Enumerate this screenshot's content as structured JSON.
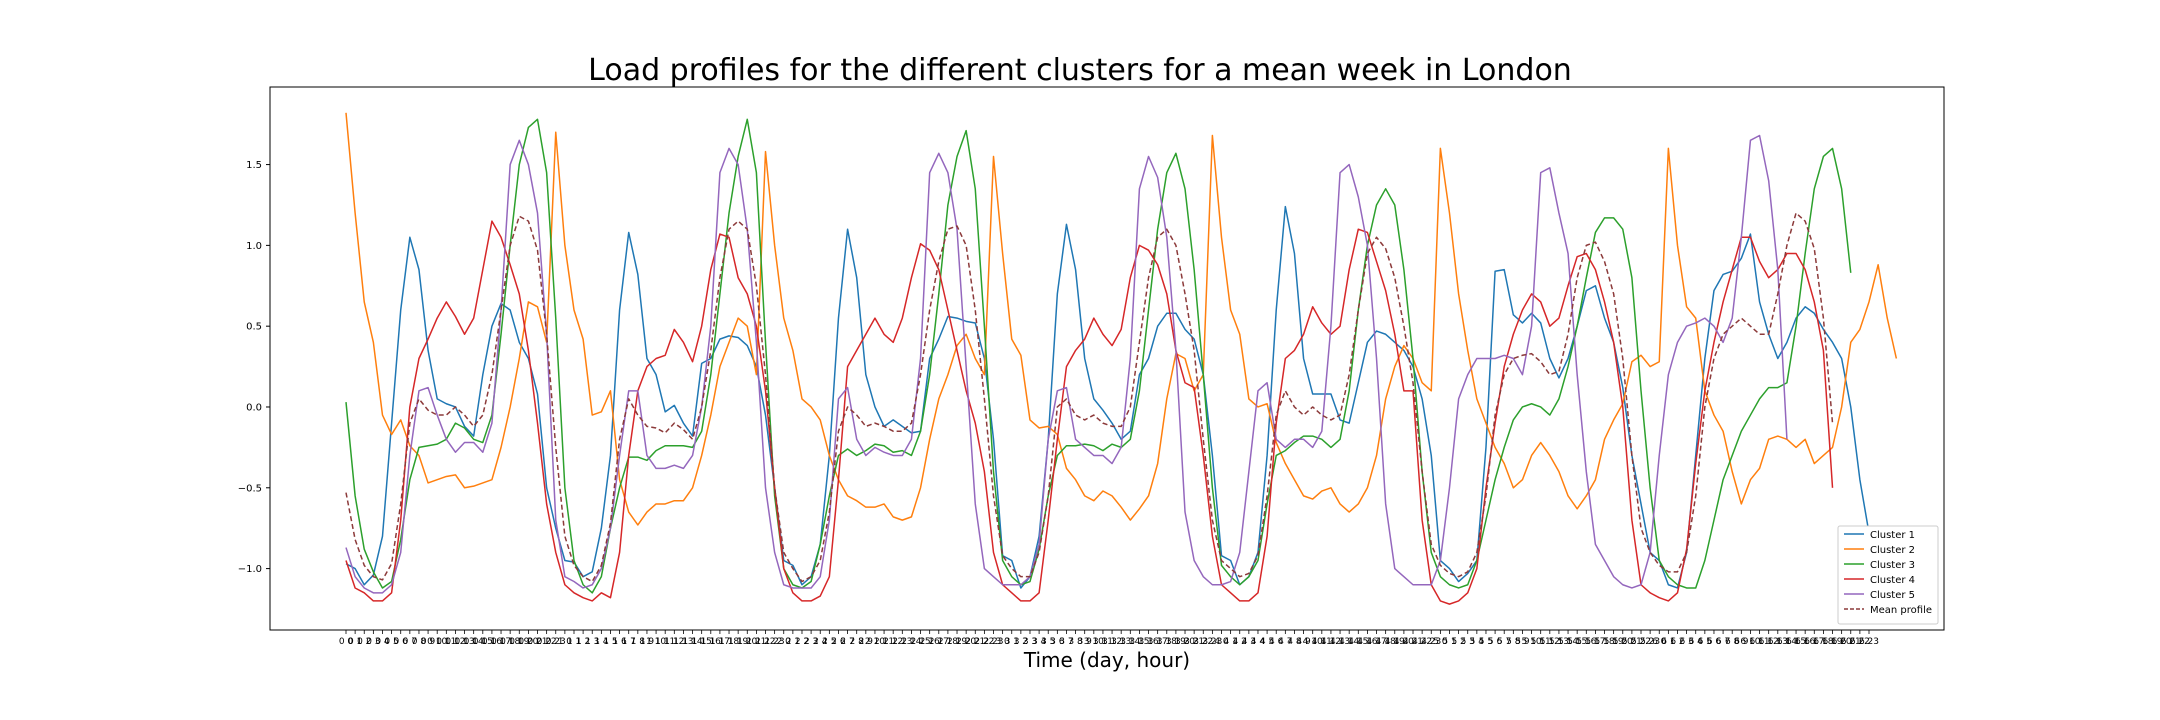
{
  "chart_data": {
    "type": "line",
    "title": "Load profiles for the different clusters for a mean week in London",
    "xlabel": "Time (day, hour)",
    "ylabel": "",
    "ylim": [
      -1.38,
      1.98
    ],
    "yticks": [
      -1.0,
      -0.5,
      0.0,
      0.5,
      1.0,
      1.5
    ],
    "ytick_labels": [
      "−1.0",
      "−0.5",
      "0.0",
      "0.5",
      "1.0",
      "1.5"
    ],
    "x_tick_labels": [
      "0 0",
      "0 1",
      "0 2",
      "0 3",
      "0 4",
      "0 5",
      "0 6",
      "0 7",
      "0 8",
      "0 9",
      "0 10",
      "0 11",
      "0 12",
      "0 13",
      "0 14",
      "0 15",
      "0 16",
      "0 17",
      "0 18",
      "0 19",
      "0 20",
      "0 21",
      "0 22",
      "0 23",
      "1 0",
      "1 1",
      "1 2",
      "1 3",
      "1 4",
      "1 5",
      "1 6",
      "1 7",
      "1 8",
      "1 9",
      "1 10",
      "1 11",
      "1 12",
      "1 13",
      "1 14",
      "1 15",
      "1 16",
      "1 17",
      "1 18",
      "1 19",
      "1 20",
      "1 21",
      "1 22",
      "1 23",
      "2 0",
      "2 1",
      "2 2",
      "2 3",
      "2 4",
      "2 5",
      "2 6",
      "2 7",
      "2 8",
      "2 9",
      "2 10",
      "2 11",
      "2 12",
      "2 13",
      "2 14",
      "2 15",
      "2 16",
      "2 17",
      "2 18",
      "2 19",
      "2 20",
      "2 21",
      "2 22",
      "2 23",
      "3 0",
      "3 1",
      "3 2",
      "3 3",
      "3 4",
      "3 5",
      "3 6",
      "3 7",
      "3 8",
      "3 9",
      "3 10",
      "3 11",
      "3 12",
      "3 13",
      "3 14",
      "3 15",
      "3 16",
      "3 17",
      "3 18",
      "3 19",
      "3 20",
      "3 21",
      "3 22",
      "3 23",
      "4 0",
      "4 1",
      "4 2",
      "4 3",
      "4 4",
      "4 5",
      "4 6",
      "4 7",
      "4 8",
      "4 9",
      "4 10",
      "4 11",
      "4 12",
      "4 13",
      "4 14",
      "4 15",
      "4 16",
      "4 17",
      "4 18",
      "4 19",
      "4 20",
      "4 21",
      "4 22",
      "4 23",
      "5 0",
      "5 1",
      "5 2",
      "5 3",
      "5 4",
      "5 5",
      "5 6",
      "5 7",
      "5 8",
      "5 9",
      "5 10",
      "5 11",
      "5 12",
      "5 13",
      "5 14",
      "5 15",
      "5 16",
      "5 17",
      "5 18",
      "5 19",
      "5 20",
      "5 21",
      "5 22",
      "5 23",
      "6 0",
      "6 1",
      "6 2",
      "6 3",
      "6 4",
      "6 5",
      "6 6",
      "6 7",
      "6 8",
      "6 9",
      "6 10",
      "6 11",
      "6 12",
      "6 13",
      "6 14",
      "6 15",
      "6 16",
      "6 17",
      "6 18",
      "6 19",
      "6 20",
      "6 21",
      "6 22",
      "6 23"
    ],
    "grid": false,
    "legend_position": "lower-right",
    "series": [
      {
        "name": "Cluster 1",
        "color": "#1f77b4",
        "dash": "solid",
        "values": [
          -0.97,
          -1.0,
          -1.1,
          -1.04,
          -0.8,
          -0.1,
          0.6,
          1.05,
          0.85,
          0.35,
          0.05,
          0.02,
          0.0,
          -0.12,
          -0.18,
          0.2,
          0.5,
          0.64,
          0.6,
          0.4,
          0.3,
          0.08,
          -0.5,
          -0.75,
          -0.95,
          -0.96,
          -1.05,
          -1.02,
          -0.75,
          -0.3,
          0.6,
          1.08,
          0.82,
          0.3,
          0.2,
          -0.03,
          0.01,
          -0.1,
          -0.18,
          0.27,
          0.3,
          0.42,
          0.44,
          0.43,
          0.38,
          0.25,
          -0.05,
          -0.5,
          -0.95,
          -0.98,
          -1.1,
          -1.05,
          -0.85,
          -0.3,
          0.55,
          1.1,
          0.8,
          0.2,
          0.0,
          -0.12,
          -0.08,
          -0.12,
          -0.16,
          -0.15,
          0.3,
          0.42,
          0.56,
          0.55,
          0.53,
          0.52,
          0.3,
          -0.2,
          -0.92,
          -0.95,
          -1.12,
          -1.05,
          -0.8,
          -0.2,
          0.7,
          1.13,
          0.85,
          0.3,
          0.05,
          -0.02,
          -0.1,
          -0.2,
          -0.15,
          0.2,
          0.3,
          0.5,
          0.58,
          0.58,
          0.48,
          0.42,
          0.2,
          -0.3,
          -0.92,
          -0.95,
          -1.1,
          -1.05,
          -0.9,
          -0.3,
          0.6,
          1.24,
          0.95,
          0.3,
          0.08,
          0.08,
          0.08,
          -0.08,
          -0.1,
          0.15,
          0.4,
          0.47,
          0.45,
          0.4,
          0.35,
          0.25,
          0.05,
          -0.3,
          -0.95,
          -1.0,
          -1.08,
          -1.03,
          -0.95,
          -0.25,
          0.84,
          0.85,
          0.57,
          0.52,
          0.58,
          0.52,
          0.3,
          0.18,
          0.3,
          0.5,
          0.72,
          0.75,
          0.55,
          0.4,
          0.12,
          -0.3,
          -0.6,
          -0.9,
          -0.95,
          -1.1,
          -1.12,
          -0.9,
          -0.3,
          0.3,
          0.72,
          0.82,
          0.84,
          0.92,
          1.07,
          0.65,
          0.45,
          0.3,
          0.4,
          0.55,
          0.62,
          0.58,
          0.48,
          0.4,
          0.3,
          0.0,
          -0.45,
          -0.78
        ]
      },
      {
        "name": "Cluster 2",
        "color": "#ff7f0e",
        "dash": "solid",
        "values": [
          1.82,
          1.2,
          0.65,
          0.4,
          -0.05,
          -0.17,
          -0.08,
          -0.24,
          -0.3,
          -0.47,
          -0.45,
          -0.43,
          -0.42,
          -0.5,
          -0.49,
          -0.47,
          -0.45,
          -0.25,
          0.0,
          0.3,
          0.65,
          0.62,
          0.4,
          1.7,
          1.0,
          0.6,
          0.42,
          -0.05,
          -0.03,
          0.1,
          -0.45,
          -0.65,
          -0.73,
          -0.65,
          -0.6,
          -0.6,
          -0.58,
          -0.58,
          -0.5,
          -0.3,
          -0.05,
          0.25,
          0.4,
          0.55,
          0.5,
          0.2,
          1.58,
          1.0,
          0.55,
          0.35,
          0.05,
          0.0,
          -0.08,
          -0.3,
          -0.45,
          -0.55,
          -0.58,
          -0.62,
          -0.62,
          -0.6,
          -0.68,
          -0.7,
          -0.68,
          -0.5,
          -0.2,
          0.05,
          0.2,
          0.38,
          0.45,
          0.3,
          0.2,
          1.55,
          0.95,
          0.42,
          0.32,
          -0.08,
          -0.13,
          -0.12,
          -0.17,
          -0.38,
          -0.45,
          -0.55,
          -0.58,
          -0.52,
          -0.55,
          -0.62,
          -0.7,
          -0.63,
          -0.55,
          -0.35,
          0.05,
          0.33,
          0.3,
          0.1,
          0.2,
          1.68,
          1.05,
          0.6,
          0.45,
          0.05,
          0.0,
          0.02,
          -0.22,
          -0.35,
          -0.45,
          -0.55,
          -0.57,
          -0.52,
          -0.5,
          -0.6,
          -0.65,
          -0.6,
          -0.5,
          -0.3,
          0.05,
          0.25,
          0.38,
          0.3,
          0.15,
          0.1,
          1.6,
          1.2,
          0.7,
          0.35,
          0.05,
          -0.1,
          -0.25,
          -0.35,
          -0.5,
          -0.45,
          -0.3,
          -0.22,
          -0.3,
          -0.4,
          -0.55,
          -0.63,
          -0.55,
          -0.45,
          -0.2,
          -0.08,
          0.02,
          0.28,
          0.32,
          0.25,
          0.28,
          1.6,
          1.0,
          0.62,
          0.55,
          0.1,
          -0.05,
          -0.15,
          -0.4,
          -0.6,
          -0.45,
          -0.38,
          -0.2,
          -0.18,
          -0.2,
          -0.25,
          -0.2,
          -0.35,
          -0.3,
          -0.25,
          0.0,
          0.4,
          0.48,
          0.65,
          0.88,
          0.55,
          0.3
        ]
      },
      {
        "name": "Cluster 3",
        "color": "#2ca02c",
        "dash": "solid",
        "values": [
          0.03,
          -0.55,
          -0.88,
          -1.02,
          -1.12,
          -1.08,
          -0.82,
          -0.45,
          -0.25,
          -0.24,
          -0.23,
          -0.2,
          -0.1,
          -0.13,
          -0.2,
          -0.22,
          -0.05,
          0.45,
          1.0,
          1.5,
          1.73,
          1.78,
          1.45,
          0.55,
          -0.5,
          -0.95,
          -1.1,
          -1.15,
          -1.05,
          -0.75,
          -0.5,
          -0.31,
          -0.31,
          -0.33,
          -0.27,
          -0.24,
          -0.24,
          -0.24,
          -0.25,
          -0.15,
          0.2,
          0.7,
          1.2,
          1.55,
          1.78,
          1.45,
          0.4,
          -0.55,
          -1.0,
          -1.1,
          -1.12,
          -1.08,
          -0.85,
          -0.55,
          -0.3,
          -0.26,
          -0.3,
          -0.27,
          -0.23,
          -0.24,
          -0.28,
          -0.27,
          -0.3,
          -0.15,
          0.2,
          0.7,
          1.25,
          1.55,
          1.71,
          1.35,
          0.5,
          -0.4,
          -0.95,
          -1.05,
          -1.1,
          -1.08,
          -0.88,
          -0.55,
          -0.3,
          -0.24,
          -0.24,
          -0.23,
          -0.24,
          -0.27,
          -0.23,
          -0.25,
          -0.2,
          0.1,
          0.6,
          1.1,
          1.45,
          1.57,
          1.35,
          0.85,
          0.2,
          -0.5,
          -0.98,
          -1.05,
          -1.1,
          -1.05,
          -0.95,
          -0.6,
          -0.3,
          -0.27,
          -0.22,
          -0.18,
          -0.18,
          -0.2,
          -0.25,
          -0.2,
          0.1,
          0.6,
          1.0,
          1.25,
          1.35,
          1.25,
          0.85,
          0.3,
          -0.4,
          -0.9,
          -1.05,
          -1.1,
          -1.12,
          -1.1,
          -0.95,
          -0.7,
          -0.45,
          -0.25,
          -0.08,
          0.0,
          0.02,
          0.0,
          -0.05,
          0.05,
          0.25,
          0.5,
          0.8,
          1.08,
          1.17,
          1.17,
          1.1,
          0.8,
          0.1,
          -0.5,
          -0.95,
          -1.05,
          -1.1,
          -1.12,
          -1.12,
          -0.95,
          -0.7,
          -0.45,
          -0.3,
          -0.15,
          -0.05,
          0.05,
          0.12,
          0.12,
          0.15,
          0.5,
          0.95,
          1.35,
          1.55,
          1.6,
          1.35,
          0.83
        ]
      },
      {
        "name": "Cluster 4",
        "color": "#d62728",
        "dash": "solid",
        "values": [
          -0.95,
          -1.12,
          -1.15,
          -1.2,
          -1.2,
          -1.15,
          -0.7,
          0.0,
          0.3,
          0.42,
          0.55,
          0.65,
          0.56,
          0.45,
          0.55,
          0.85,
          1.15,
          1.05,
          0.88,
          0.7,
          0.35,
          -0.1,
          -0.6,
          -0.9,
          -1.1,
          -1.15,
          -1.18,
          -1.2,
          -1.15,
          -1.18,
          -0.9,
          -0.3,
          0.1,
          0.25,
          0.3,
          0.32,
          0.48,
          0.4,
          0.28,
          0.5,
          0.85,
          1.07,
          1.05,
          0.8,
          0.7,
          0.5,
          0.1,
          -0.5,
          -1.0,
          -1.15,
          -1.2,
          -1.2,
          -1.17,
          -1.05,
          -0.45,
          0.25,
          0.35,
          0.45,
          0.55,
          0.45,
          0.4,
          0.55,
          0.8,
          1.01,
          0.97,
          0.85,
          0.6,
          0.35,
          0.1,
          -0.1,
          -0.4,
          -0.9,
          -1.1,
          -1.15,
          -1.2,
          -1.2,
          -1.15,
          -0.7,
          -0.2,
          0.25,
          0.35,
          0.42,
          0.55,
          0.45,
          0.38,
          0.48,
          0.8,
          1.0,
          0.97,
          0.88,
          0.7,
          0.35,
          0.15,
          0.12,
          -0.3,
          -0.8,
          -1.1,
          -1.15,
          -1.2,
          -1.2,
          -1.15,
          -0.8,
          -0.1,
          0.3,
          0.35,
          0.45,
          0.62,
          0.52,
          0.45,
          0.5,
          0.85,
          1.1,
          1.08,
          0.9,
          0.72,
          0.45,
          0.1,
          0.1,
          -0.7,
          -1.1,
          -1.2,
          -1.22,
          -1.2,
          -1.15,
          -1.0,
          -0.5,
          -0.1,
          0.25,
          0.45,
          0.6,
          0.7,
          0.65,
          0.5,
          0.55,
          0.75,
          0.93,
          0.95,
          0.85,
          0.65,
          0.4,
          0.0,
          -0.7,
          -1.1,
          -1.15,
          -1.18,
          -1.2,
          -1.15,
          -0.88,
          -0.35,
          0.1,
          0.4,
          0.65,
          0.85,
          1.05,
          1.05,
          0.9,
          0.8,
          0.85,
          0.95,
          0.95,
          0.85,
          0.65,
          0.35,
          -0.5
        ]
      },
      {
        "name": "Cluster 5",
        "color": "#9467bd",
        "dash": "solid",
        "values": [
          -0.87,
          -1.05,
          -1.12,
          -1.15,
          -1.15,
          -1.1,
          -0.9,
          -0.3,
          0.1,
          0.12,
          -0.05,
          -0.2,
          -0.28,
          -0.22,
          -0.22,
          -0.28,
          -0.1,
          0.6,
          1.5,
          1.65,
          1.5,
          1.2,
          0.45,
          -0.7,
          -1.05,
          -1.08,
          -1.12,
          -1.1,
          -1.0,
          -0.75,
          -0.3,
          0.1,
          0.1,
          -0.3,
          -0.38,
          -0.38,
          -0.36,
          -0.38,
          -0.3,
          0.0,
          0.5,
          1.45,
          1.6,
          1.5,
          1.1,
          0.4,
          -0.5,
          -0.9,
          -1.1,
          -1.12,
          -1.12,
          -1.12,
          -1.05,
          -0.7,
          0.05,
          0.12,
          -0.2,
          -0.3,
          -0.25,
          -0.28,
          -0.3,
          -0.3,
          -0.2,
          0.3,
          1.45,
          1.57,
          1.45,
          1.1,
          0.25,
          -0.6,
          -1.0,
          -1.05,
          -1.1,
          -1.1,
          -1.1,
          -1.05,
          -0.85,
          -0.2,
          0.1,
          0.12,
          -0.2,
          -0.25,
          -0.3,
          -0.3,
          -0.35,
          -0.25,
          0.3,
          1.35,
          1.55,
          1.42,
          1.05,
          0.35,
          -0.65,
          -0.95,
          -1.05,
          -1.1,
          -1.1,
          -1.08,
          -0.9,
          -0.4,
          0.1,
          0.15,
          -0.2,
          -0.25,
          -0.2,
          -0.2,
          -0.25,
          -0.15,
          0.5,
          1.45,
          1.5,
          1.3,
          1.0,
          0.3,
          -0.6,
          -1.0,
          -1.05,
          -1.1,
          -1.1,
          -1.1,
          -0.95,
          -0.5,
          0.05,
          0.2,
          0.3,
          0.3,
          0.3,
          0.32,
          0.3,
          0.2,
          0.5,
          1.45,
          1.48,
          1.2,
          0.95,
          0.2,
          -0.4,
          -0.85,
          -0.95,
          -1.05,
          -1.1,
          -1.12,
          -1.1,
          -0.9,
          -0.3,
          0.2,
          0.4,
          0.5,
          0.52,
          0.55,
          0.5,
          0.4,
          0.55,
          1.05,
          1.65,
          1.68,
          1.4,
          0.85,
          -0.2
        ]
      },
      {
        "name": "Mean profile",
        "color": "#8c3a3a",
        "dash": "dashed",
        "values": [
          -0.53,
          -0.82,
          -0.98,
          -1.05,
          -1.07,
          -0.97,
          -0.6,
          -0.1,
          0.05,
          -0.02,
          -0.05,
          -0.05,
          0.0,
          -0.05,
          -0.12,
          -0.05,
          0.2,
          0.6,
          1.0,
          1.18,
          1.15,
          0.97,
          0.45,
          -0.25,
          -0.8,
          -0.98,
          -1.05,
          -1.08,
          -0.98,
          -0.72,
          -0.2,
          0.05,
          -0.05,
          -0.12,
          -0.13,
          -0.16,
          -0.1,
          -0.14,
          -0.2,
          0.0,
          0.35,
          0.8,
          1.1,
          1.15,
          1.1,
          0.75,
          0.2,
          -0.5,
          -0.9,
          -1.0,
          -1.08,
          -1.05,
          -0.95,
          -0.65,
          -0.15,
          0.0,
          -0.05,
          -0.12,
          -0.1,
          -0.12,
          -0.15,
          -0.15,
          -0.1,
          0.2,
          0.6,
          0.9,
          1.1,
          1.12,
          1.0,
          0.6,
          0.05,
          -0.55,
          -0.92,
          -1.0,
          -1.05,
          -1.05,
          -0.9,
          -0.55,
          0.0,
          0.05,
          -0.05,
          -0.08,
          -0.05,
          -0.1,
          -0.12,
          -0.12,
          0.0,
          0.4,
          0.8,
          1.05,
          1.1,
          1.0,
          0.7,
          0.35,
          -0.2,
          -0.7,
          -0.95,
          -1.0,
          -1.05,
          -1.03,
          -0.92,
          -0.55,
          -0.05,
          0.1,
          0.0,
          -0.05,
          0.0,
          -0.05,
          -0.08,
          -0.05,
          0.2,
          0.6,
          0.95,
          1.05,
          0.98,
          0.8,
          0.5,
          0.15,
          -0.4,
          -0.85,
          -0.98,
          -1.03,
          -1.05,
          -1.02,
          -0.9,
          -0.55,
          -0.05,
          0.2,
          0.3,
          0.32,
          0.33,
          0.28,
          0.2,
          0.22,
          0.45,
          0.8,
          1.0,
          1.02,
          0.9,
          0.7,
          0.3,
          -0.3,
          -0.75,
          -0.9,
          -0.98,
          -1.02,
          -1.02,
          -0.9,
          -0.55,
          0.0,
          0.3,
          0.45,
          0.5,
          0.55,
          0.5,
          0.45,
          0.45,
          0.7,
          1.0,
          1.2,
          1.15,
          0.98,
          0.55,
          -0.1
        ]
      }
    ]
  }
}
